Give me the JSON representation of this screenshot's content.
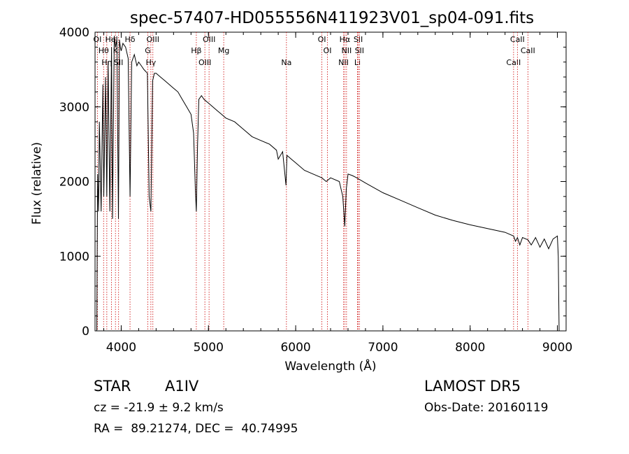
{
  "chart_data": {
    "type": "line",
    "title": "spec-57407-HD055556N411923V01_sp04-091.fits",
    "xlabel": "Wavelength (Å)",
    "ylabel": "Flux (relative)",
    "xlim": [
      3700,
      9100
    ],
    "ylim": [
      0,
      4000
    ],
    "xticks": [
      "4000",
      "5000",
      "6000",
      "7000",
      "8000",
      "9000"
    ],
    "yticks": [
      "0",
      "1000",
      "2000",
      "3000",
      "4000"
    ],
    "grid": false,
    "series": [
      {
        "x": [
          3720,
          3730,
          3740,
          3750,
          3770,
          3790,
          3800,
          3820,
          3835,
          3850,
          3870,
          3889,
          3900,
          3920,
          3935,
          3950,
          3968,
          3980,
          3990,
          4000,
          4020,
          4050,
          4080,
          4101,
          4120,
          4150,
          4180,
          4200,
          4230,
          4260,
          4300,
          4320,
          4340,
          4360,
          4380,
          4400,
          4450,
          4500,
          4550,
          4600,
          4650,
          4700,
          4750,
          4800,
          4830,
          4850,
          4861,
          4875,
          4890,
          4920,
          4950,
          5000,
          5050,
          5100,
          5150,
          5200,
          5300,
          5400,
          5500,
          5600,
          5700,
          5780,
          5800,
          5850,
          5889,
          5900,
          5950,
          6000,
          6100,
          6200,
          6300,
          6350,
          6400,
          6500,
          6540,
          6563,
          6580,
          6600,
          6650,
          6700,
          6800,
          7000,
          7200,
          7400,
          7600,
          7800,
          8000,
          8200,
          8400,
          8498,
          8520,
          8542,
          8570,
          8600,
          8662,
          8700,
          8750,
          8800,
          8850,
          8900,
          8950,
          9000,
          9010,
          9020
        ],
        "y": [
          0,
          2100,
          1600,
          2800,
          1600,
          3300,
          1800,
          3400,
          1800,
          3600,
          1600,
          3800,
          1500,
          3950,
          3800,
          3900,
          1500,
          3900,
          3800,
          3750,
          3850,
          3800,
          3650,
          1800,
          3600,
          3700,
          3550,
          3600,
          3550,
          3500,
          3450,
          1800,
          1600,
          3350,
          3450,
          3450,
          3400,
          3350,
          3300,
          3250,
          3200,
          3100,
          3000,
          2900,
          2650,
          1900,
          1600,
          2500,
          3100,
          3150,
          3100,
          3050,
          3000,
          2950,
          2900,
          2850,
          2800,
          2700,
          2600,
          2550,
          2500,
          2420,
          2300,
          2400,
          1950,
          2350,
          2300,
          2250,
          2150,
          2100,
          2050,
          2000,
          2050,
          2000,
          1800,
          1400,
          1900,
          2100,
          2080,
          2050,
          1980,
          1850,
          1750,
          1650,
          1550,
          1480,
          1420,
          1370,
          1320,
          1270,
          1200,
          1250,
          1150,
          1250,
          1220,
          1150,
          1250,
          1120,
          1230,
          1100,
          1230,
          1270,
          1000,
          0
        ]
      }
    ],
    "lines": [
      {
        "name": "OI",
        "x": 3727
      },
      {
        "name": "Hθ",
        "x": 3798
      },
      {
        "name": "Hη",
        "x": 3835
      },
      {
        "name": "HeI",
        "x": 3889
      },
      {
        "name": "K",
        "x": 3934
      },
      {
        "name": "SII",
        "x": 3970
      },
      {
        "name": "Hδ",
        "x": 4101
      },
      {
        "name": "G",
        "x": 4305
      },
      {
        "name": "Hγ",
        "x": 4340
      },
      {
        "name": "OIII",
        "x": 4363
      },
      {
        "name": "Hβ",
        "x": 4861
      },
      {
        "name": "OIII",
        "x": 4959
      },
      {
        "name": "OIII",
        "x": 5007
      },
      {
        "name": "Mg",
        "x": 5175
      },
      {
        "name": "Na",
        "x": 5894
      },
      {
        "name": "OI",
        "x": 6300
      },
      {
        "name": "OI",
        "x": 6364
      },
      {
        "name": "NII",
        "x": 6548
      },
      {
        "name": "Hα",
        "x": 6563
      },
      {
        "name": "NII",
        "x": 6583
      },
      {
        "name": "Li",
        "x": 6708
      },
      {
        "name": "SII",
        "x": 6717
      },
      {
        "name": "SII",
        "x": 6731
      },
      {
        "name": "CaII",
        "x": 8498
      },
      {
        "name": "CaII",
        "x": 8542
      },
      {
        "name": "CaII",
        "x": 8662
      }
    ],
    "line_color": "#cc0000"
  },
  "info": {
    "class_label": "STAR",
    "subclass": "A1IV",
    "redshift": "cz = -21.9 ± 9.2 km/s",
    "coords": "RA =  89.21274, DEC =  40.74995",
    "survey": "LAMOST DR5",
    "obs_date": "Obs-Date: 20160119"
  }
}
